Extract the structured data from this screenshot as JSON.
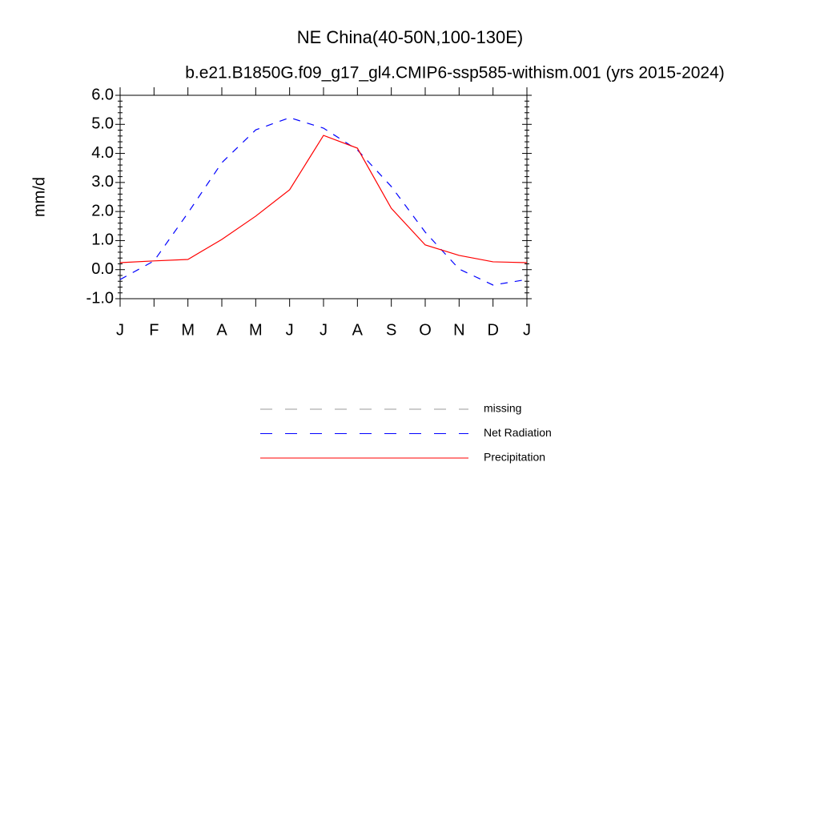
{
  "chart_data": {
    "type": "line",
    "title": "NE China(40-50N,100-130E)",
    "subtitle": "b.e21.B1850G.f09_g17_gl4.CMIP6-ssp585-withism.001 (yrs 2015-2024)",
    "ylabel": "mm/d",
    "categories": [
      "J",
      "F",
      "M",
      "A",
      "M",
      "J",
      "J",
      "A",
      "S",
      "O",
      "N",
      "D",
      "J"
    ],
    "series": [
      {
        "name": "missing",
        "color": "#999999",
        "dashed": true,
        "values": [
          null,
          null,
          null,
          null,
          null,
          null,
          null,
          null,
          null,
          null,
          null,
          null,
          null
        ]
      },
      {
        "name": "Net Radiation",
        "color": "#0000ff",
        "dashed": true,
        "values": [
          -0.34,
          0.3,
          1.95,
          3.68,
          4.81,
          5.23,
          4.87,
          4.12,
          2.86,
          1.29,
          0.02,
          -0.53,
          -0.34
        ]
      },
      {
        "name": "Precipitation",
        "color": "#ff0000",
        "dashed": false,
        "values": [
          0.24,
          0.3,
          0.35,
          1.04,
          1.84,
          2.75,
          4.62,
          4.18,
          2.11,
          0.85,
          0.49,
          0.27,
          0.24
        ]
      }
    ],
    "ylim": [
      -1,
      6
    ],
    "yticks": [
      {
        "value": -1,
        "label": "-1.0"
      },
      {
        "value": 0,
        "label": "0.0"
      },
      {
        "value": 1,
        "label": "1.0"
      },
      {
        "value": 2,
        "label": "2.0"
      },
      {
        "value": 3,
        "label": "3.0"
      },
      {
        "value": 4,
        "label": "4.0"
      },
      {
        "value": 5,
        "label": "5.0"
      },
      {
        "value": 6,
        "label": "6.0"
      }
    ],
    "grid": false
  }
}
